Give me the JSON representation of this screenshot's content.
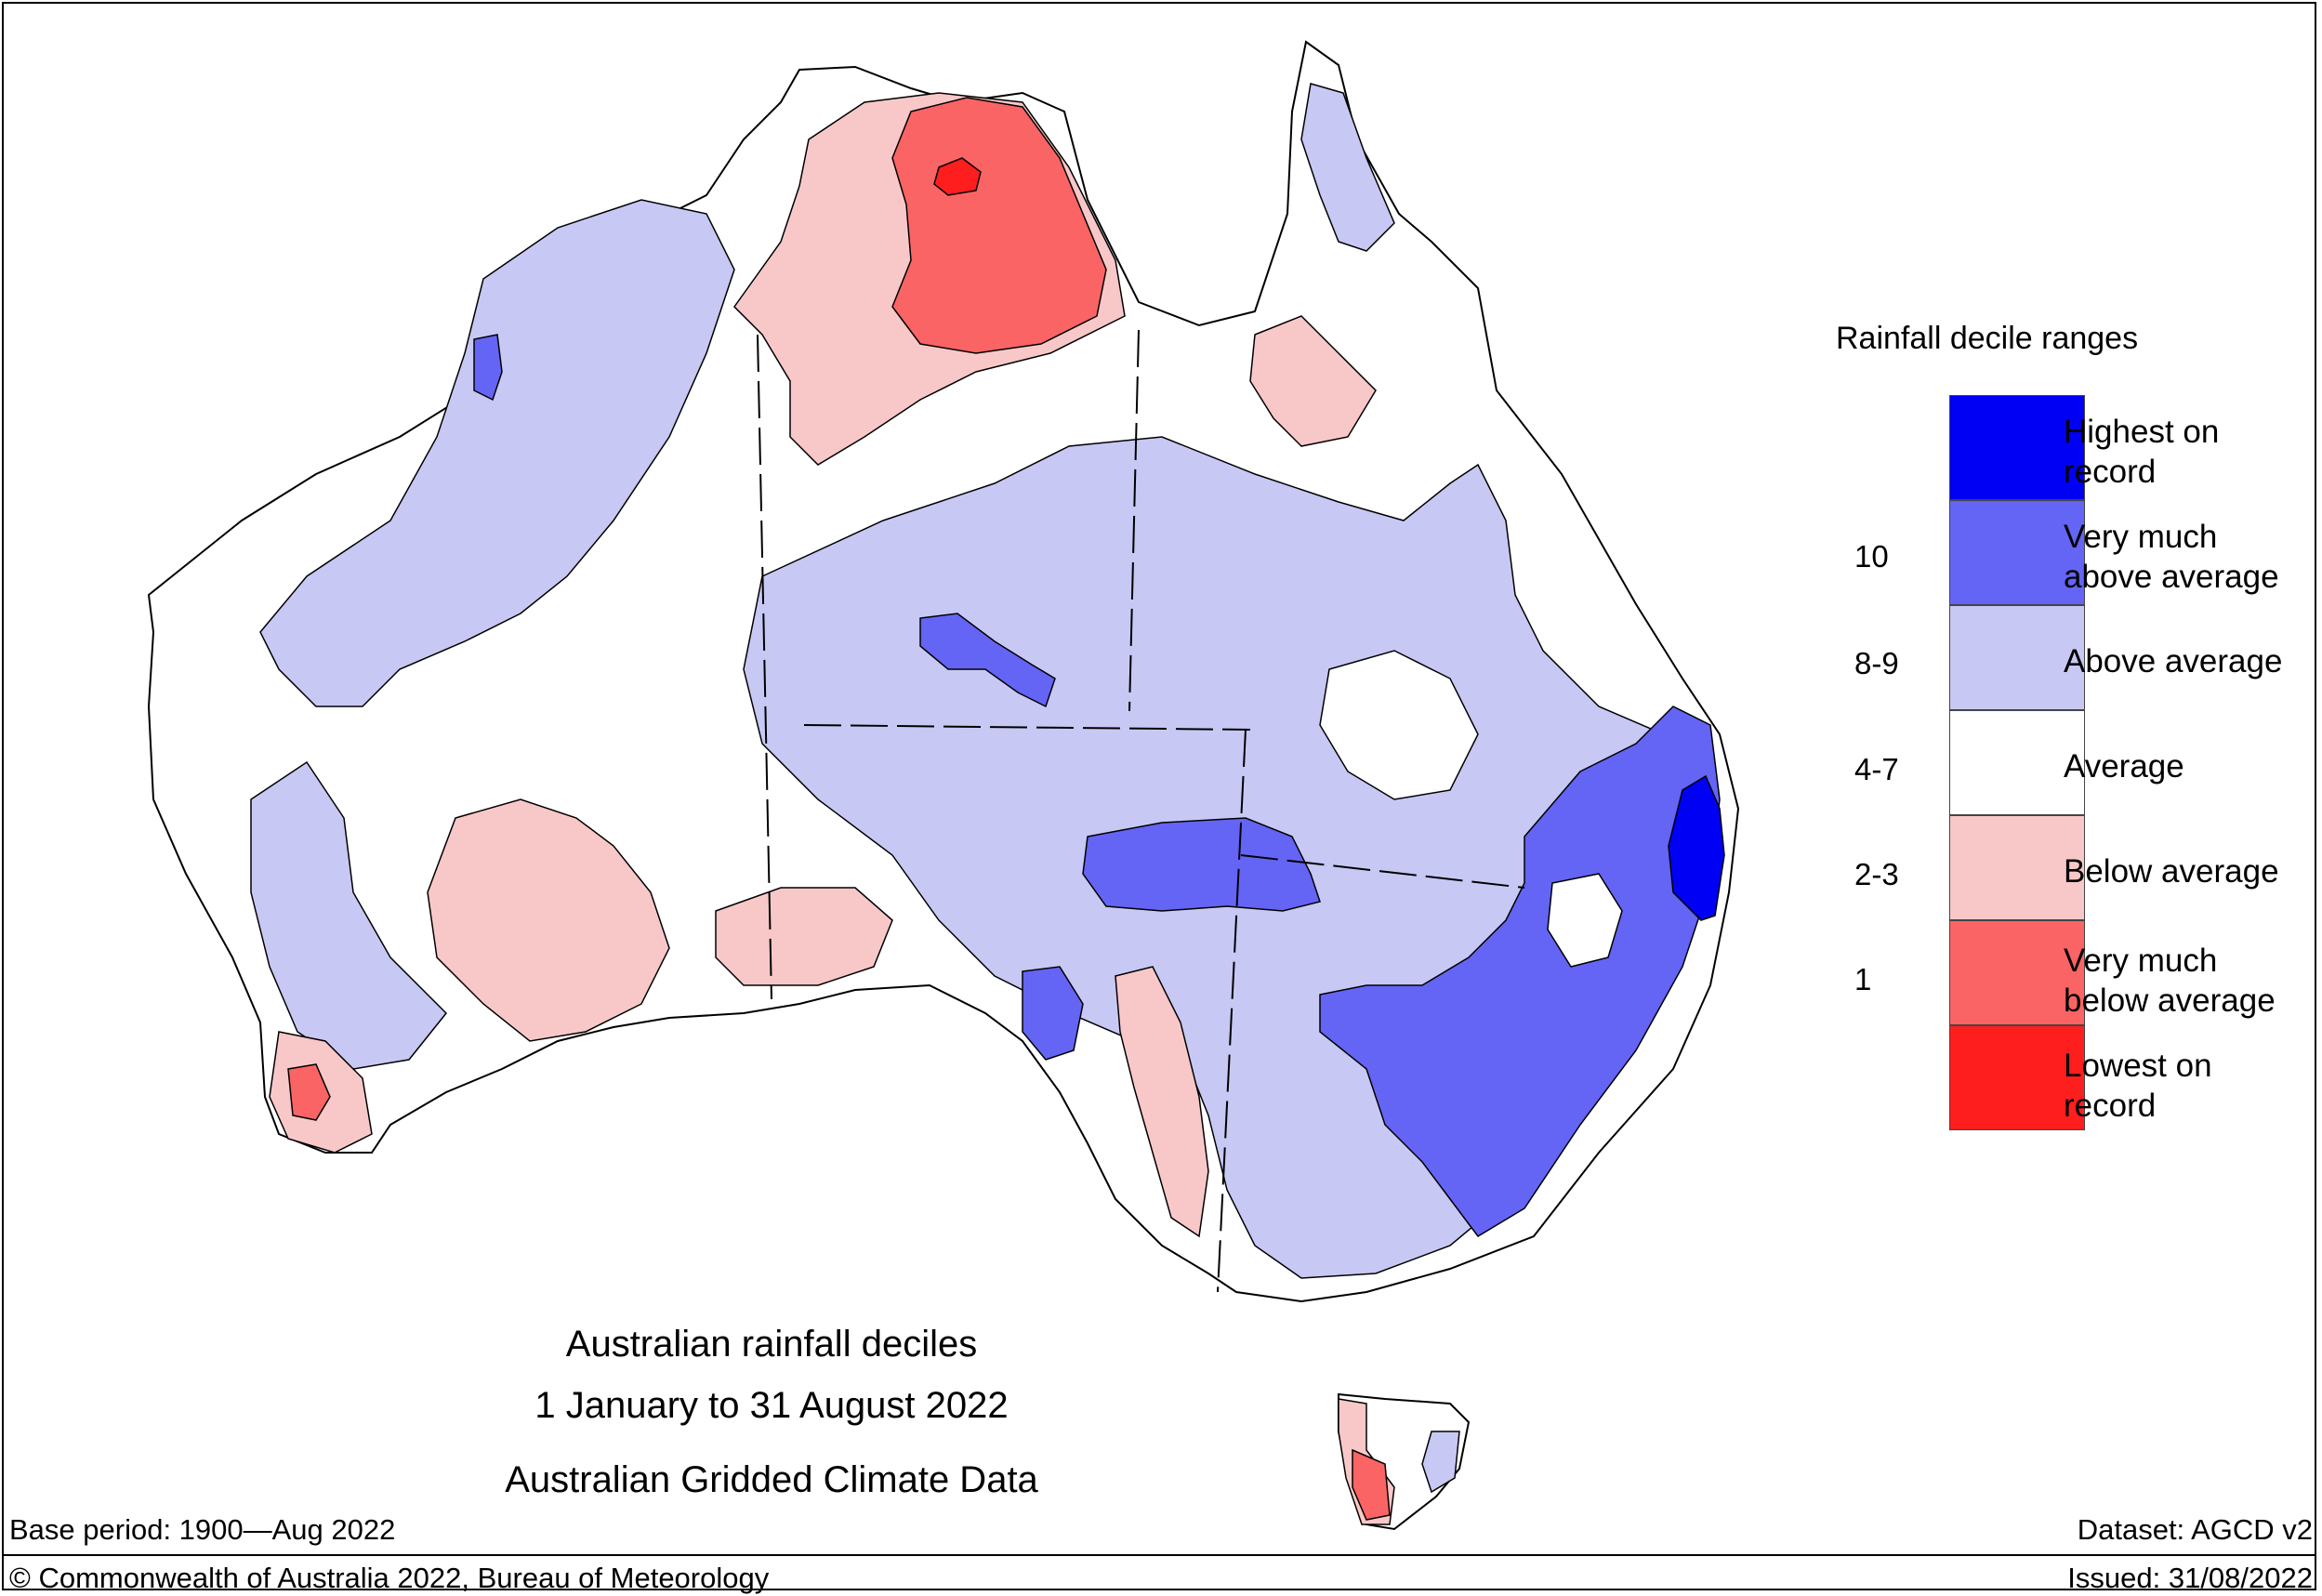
{
  "map": {
    "title_lines": [
      "Australian rainfall deciles",
      "1 January to 31 August 2022",
      "Australian Gridded Climate Data"
    ]
  },
  "legend": {
    "title": "Rainfall decile ranges",
    "categories": [
      {
        "label": "Highest on record",
        "color": "#0000f5"
      },
      {
        "label": "Very much above average",
        "color": "#6464f5"
      },
      {
        "label": "Above average",
        "color": "#c8c8f5"
      },
      {
        "label": "Average",
        "color": "#ffffff"
      },
      {
        "label": "Below average",
        "color": "#f8c8c8"
      },
      {
        "label": "Very much below average",
        "color": "#fa6464"
      },
      {
        "label": "Lowest on record",
        "color": "#ff1e1e"
      }
    ],
    "decile_labels": [
      "10",
      "8-9",
      "4-7",
      "2-3",
      "1"
    ]
  },
  "footer": {
    "base_period": "Base period: 1900—Aug 2022",
    "dataset": "Dataset: AGCD v2",
    "copyright": "© Commonwealth of Australia 2022, Bureau of Meteorology",
    "issued": "Issued: 31/08/2022"
  }
}
